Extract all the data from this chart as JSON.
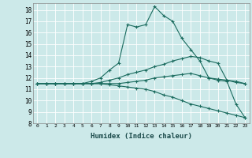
{
  "xlabel": "Humidex (Indice chaleur)",
  "ylabel": "",
  "background_color": "#cce9e9",
  "grid_color": "#ffffff",
  "line_color": "#1a6b5e",
  "xlim": [
    -0.5,
    23.5
  ],
  "ylim": [
    8,
    18.6
  ],
  "yticks": [
    8,
    9,
    10,
    11,
    12,
    13,
    14,
    15,
    16,
    17,
    18
  ],
  "xticks": [
    0,
    1,
    2,
    3,
    4,
    5,
    6,
    7,
    8,
    9,
    10,
    11,
    12,
    13,
    14,
    15,
    16,
    17,
    18,
    19,
    20,
    21,
    22,
    23
  ],
  "series": [
    [
      11.5,
      11.5,
      11.5,
      11.5,
      11.5,
      11.5,
      11.7,
      12.0,
      12.7,
      13.3,
      16.7,
      16.5,
      16.7,
      18.3,
      17.5,
      17.0,
      15.5,
      14.5,
      13.5,
      12.0,
      11.8,
      11.7,
      9.7,
      8.5
    ],
    [
      11.5,
      11.5,
      11.5,
      11.5,
      11.5,
      11.5,
      11.5,
      11.6,
      11.8,
      12.0,
      12.3,
      12.5,
      12.7,
      13.0,
      13.2,
      13.5,
      13.7,
      13.9,
      13.8,
      13.5,
      13.3,
      11.8,
      11.6,
      11.5
    ],
    [
      11.5,
      11.5,
      11.5,
      11.5,
      11.5,
      11.5,
      11.5,
      11.5,
      11.5,
      11.5,
      11.6,
      11.7,
      11.8,
      12.0,
      12.1,
      12.2,
      12.3,
      12.4,
      12.2,
      12.0,
      11.9,
      11.8,
      11.7,
      11.5
    ],
    [
      11.5,
      11.5,
      11.5,
      11.5,
      11.5,
      11.5,
      11.5,
      11.5,
      11.4,
      11.3,
      11.2,
      11.1,
      11.0,
      10.8,
      10.5,
      10.3,
      10.0,
      9.7,
      9.5,
      9.3,
      9.1,
      8.9,
      8.7,
      8.5
    ]
  ]
}
